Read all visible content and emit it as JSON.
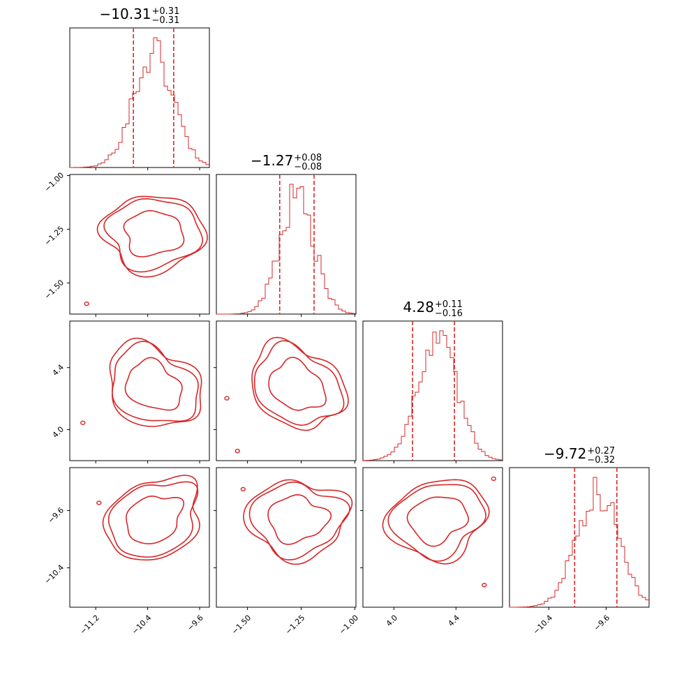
{
  "chart_data": {
    "type": "corner",
    "color": "#d62728",
    "parameters": [
      {
        "title": {
          "value": "−10.31",
          "plus": "+0.31",
          "minus": "−0.31"
        },
        "quantiles": [
          -10.62,
          -10.0
        ],
        "range": [
          -11.6,
          -9.45
        ],
        "ticks": [
          -11.2,
          -10.4,
          -9.6
        ],
        "tick_labels": [
          "−11.2",
          "−10.4",
          "−9.6"
        ],
        "hist_median": -10.31,
        "hist_sigma": 0.31
      },
      {
        "title": {
          "value": "−1.27",
          "plus": "+0.08",
          "minus": "−0.08"
        },
        "quantiles": [
          -1.35,
          -1.19
        ],
        "range": [
          -1.645,
          -0.995
        ],
        "ticks": [
          -1.5,
          -1.25,
          -1.0
        ],
        "tick_labels": [
          "−1.50",
          "−1.25",
          "−1.00"
        ],
        "hist_median": -1.27,
        "hist_sigma": 0.08
      },
      {
        "title": {
          "value": "4.28",
          "plus": "+0.11",
          "minus": "−0.16"
        },
        "quantiles": [
          4.12,
          4.39
        ],
        "range": [
          3.8,
          4.7
        ],
        "ticks": [
          4.0,
          4.4
        ],
        "tick_labels": [
          "4.0",
          "4.4"
        ],
        "hist_median": 4.28,
        "hist_sigma": 0.13
      },
      {
        "title": {
          "value": "−9.72",
          "plus": "+0.27",
          "minus": "−0.32"
        },
        "quantiles": [
          -10.04,
          -9.45
        ],
        "range": [
          -10.95,
          -9.0
        ],
        "ticks": [
          -10.4,
          -9.6
        ],
        "tick_labels": [
          "−10.4",
          "−9.6"
        ],
        "hist_median": -9.72,
        "hist_sigma": 0.29
      }
    ],
    "contour_panels": [
      {
        "row": 1,
        "col": 0
      },
      {
        "row": 2,
        "col": 0
      },
      {
        "row": 2,
        "col": 1
      },
      {
        "row": 3,
        "col": 0
      },
      {
        "row": 3,
        "col": 1
      },
      {
        "row": 3,
        "col": 2
      }
    ]
  }
}
